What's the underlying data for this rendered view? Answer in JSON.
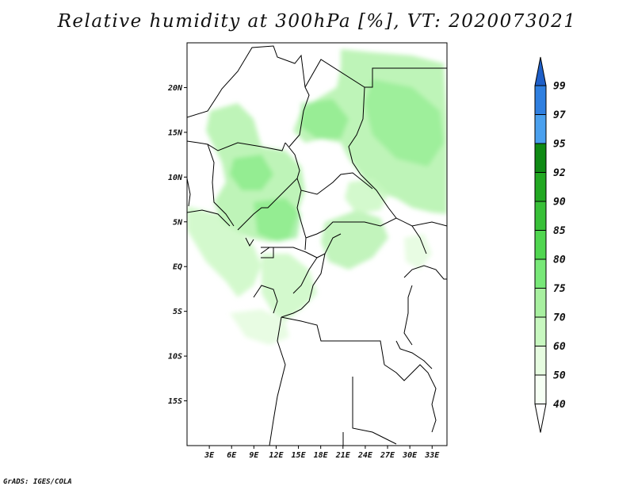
{
  "title": "Relative humidity at 300hPa [%], VT: 2020073021",
  "footer": "GrADS: IGES/COLA",
  "map": {
    "lon_range": [
      0,
      35
    ],
    "lat_range": [
      -20,
      25
    ],
    "lon_ticks": [
      "3E",
      "6E",
      "9E",
      "12E",
      "15E",
      "18E",
      "21E",
      "24E",
      "27E",
      "30E",
      "33E"
    ],
    "lat_ticks": [
      "20N",
      "15N",
      "10N",
      "5N",
      "EQ",
      "5S",
      "10S",
      "15S"
    ]
  },
  "legend": {
    "labels": [
      "99",
      "97",
      "95",
      "92",
      "90",
      "85",
      "80",
      "75",
      "70",
      "60",
      "50",
      "40"
    ],
    "colors": [
      "#1e5fc8",
      "#2f7fe0",
      "#4aa0ee",
      "#0f8a14",
      "#22a822",
      "#38c038",
      "#50d650",
      "#78e878",
      "#a8f0a0",
      "#c8f8c0",
      "#e6fce0",
      "#f6fff4"
    ]
  },
  "fill_color": "#a8f0a0"
}
